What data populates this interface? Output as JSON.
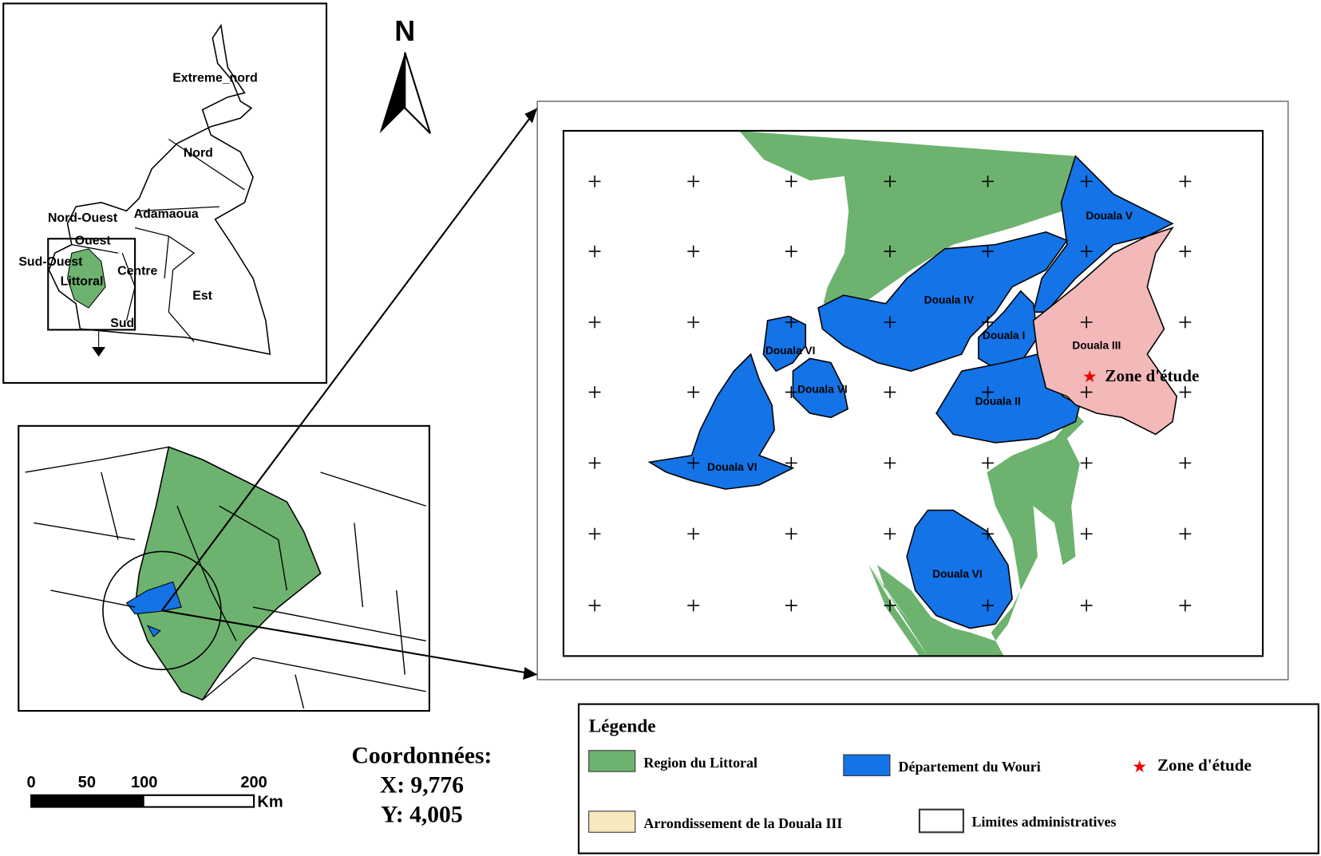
{
  "inset_regions": {
    "labels": [
      "Extreme_nord",
      "Nord",
      "Adamaoua",
      "Nord-Ouest",
      "Ouest",
      "Sud-Ouest",
      "Littoral",
      "Centre",
      "Est",
      "Sud"
    ]
  },
  "north_arrow": "N",
  "main_map": {
    "labels": [
      "Douala V",
      "Douala IV",
      "Douala I",
      "Douala III",
      "Douala VI",
      "Douala VI",
      "Douala VI",
      "Douala VI",
      "Douala II"
    ],
    "study_zone": "Zone d'étude"
  },
  "scale_bar": {
    "ticks": [
      "0",
      "50",
      "100",
      "200"
    ],
    "unit": "Km"
  },
  "coordinates": {
    "title": "Coordonnées:",
    "x": "X: 9,776",
    "y": "Y: 4,005"
  },
  "legend": {
    "title": "Légende",
    "items": [
      "Region du Littoral",
      "Département du Wouri",
      "Zone d'étude",
      "Arrondissement de la Douala III",
      "Limites administratives"
    ]
  }
}
